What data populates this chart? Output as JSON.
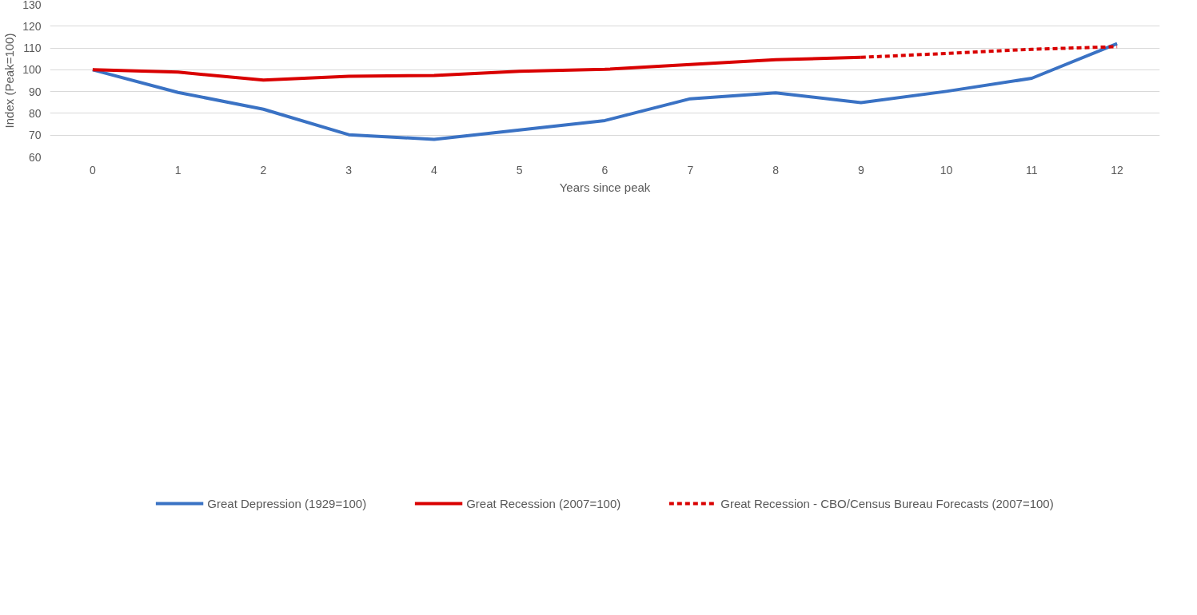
{
  "chart_data": {
    "type": "line",
    "xlabel": "Years since peak",
    "ylabel": "Index (Peak=100)",
    "categories": [
      "0",
      "1",
      "2",
      "3",
      "4",
      "5",
      "6",
      "7",
      "8",
      "9",
      "10",
      "11",
      "12"
    ],
    "series": [
      {
        "name": "Great Depression (1929=100)",
        "color": "#3a72c4",
        "line_style": "solid",
        "values": [
          100,
          89.6,
          81.9,
          70.2,
          68.1,
          72.4,
          76.7,
          86.7,
          89.4,
          84.9,
          90.1,
          96.1,
          112.0
        ]
      },
      {
        "name": "Great Recession (2007=100)",
        "color": "#d90000",
        "line_style": "solid",
        "values": [
          100,
          98.9,
          95.3,
          97.0,
          97.4,
          99.3,
          100.2,
          102.4,
          104.6,
          105.7,
          null,
          null,
          null
        ]
      },
      {
        "name": "Great Recession - CBO/Census Bureau Forecasts (2007=100)",
        "color": "#d90000",
        "line_style": "dashed",
        "values": [
          null,
          null,
          null,
          null,
          null,
          null,
          null,
          null,
          null,
          105.7,
          107.5,
          109.4,
          110.6
        ]
      }
    ],
    "ylim": [
      60,
      130
    ],
    "yticks": [
      60,
      70,
      80,
      90,
      100,
      110,
      120,
      130
    ],
    "grid": "y",
    "legend": "bottom"
  }
}
